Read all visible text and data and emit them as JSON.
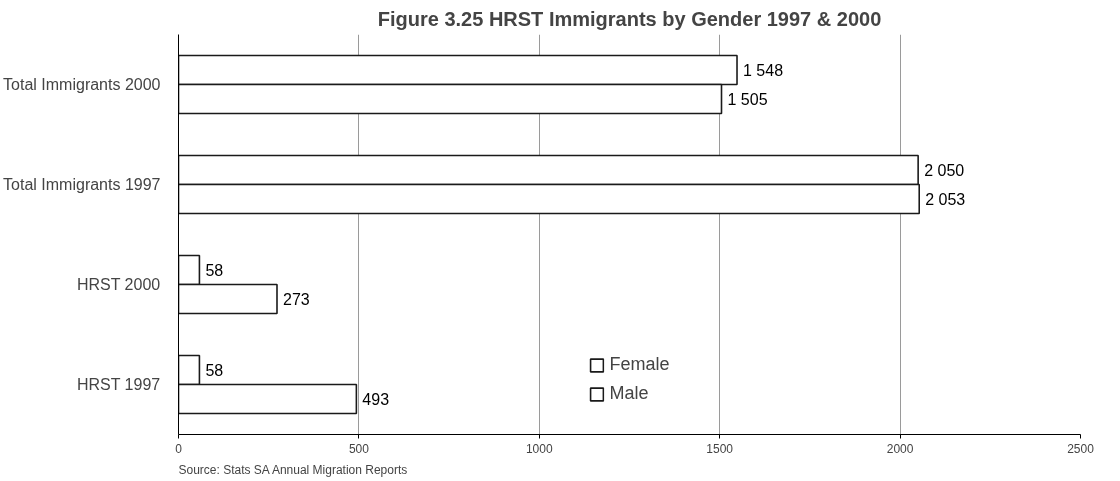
{
  "chart_data": {
    "type": "bar",
    "orientation": "horizontal",
    "title": "Figure 3.25 HRST Immigrants by Gender 1997 & 2000",
    "categories": [
      "Total Immigrants 2000",
      "Total Immigrants 1997",
      "HRST 2000",
      "HRST 1997"
    ],
    "series": [
      {
        "name": "Female",
        "color": "#ffffff",
        "values": [
          1548,
          2050,
          58,
          58
        ],
        "value_labels": [
          "1 548",
          "2 050",
          "58",
          "58"
        ]
      },
      {
        "name": "Male",
        "color": "#ffffff",
        "values": [
          1505,
          2053,
          273,
          493
        ],
        "value_labels": [
          "1 505",
          "2 053",
          "273",
          "493"
        ]
      }
    ],
    "xlim": [
      0,
      2500
    ],
    "xticks": [
      0,
      500,
      1000,
      1500,
      2000,
      2500
    ],
    "grid": "x",
    "legend": "bottom",
    "annotations": [
      "Source: Stats SA Annual Migration Reports"
    ]
  }
}
